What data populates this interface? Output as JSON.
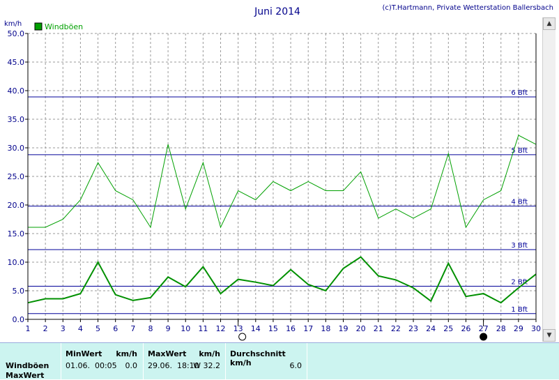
{
  "header": {
    "title": "Juni 2014",
    "copyright": "(c)T.Hartmann, Private Wetterstation Ballersbach",
    "unit": "km/h"
  },
  "chart_data": {
    "type": "line",
    "title": "Juni 2014",
    "ylabel": "km/h",
    "xlabel": "",
    "ylim": [
      0,
      50
    ],
    "xlim": [
      1,
      30
    ],
    "y_ticks": [
      "0.0",
      "5.0",
      "10.0",
      "15.0",
      "20.0",
      "25.0",
      "30.0",
      "35.0",
      "40.0",
      "45.0",
      "50.0"
    ],
    "x_ticks": [
      "1",
      "2",
      "3",
      "4",
      "5",
      "6",
      "7",
      "8",
      "9",
      "10",
      "11",
      "12",
      "13",
      "14",
      "15",
      "16",
      "17",
      "18",
      "19",
      "20",
      "21",
      "22",
      "23",
      "24",
      "25",
      "26",
      "27",
      "28",
      "29",
      "30"
    ],
    "grid": true,
    "legend": {
      "position": "top-left",
      "entries": [
        "Windböen"
      ]
    },
    "x": [
      1,
      2,
      3,
      4,
      5,
      6,
      7,
      8,
      9,
      10,
      11,
      12,
      13,
      14,
      15,
      16,
      17,
      18,
      19,
      20,
      21,
      22,
      23,
      24,
      25,
      26,
      27,
      28,
      29,
      30
    ],
    "series": [
      {
        "name": "Windböen",
        "color": "#00a000",
        "width": 1,
        "values": [
          16.1,
          16.1,
          17.5,
          20.9,
          27.4,
          22.5,
          20.9,
          16.1,
          30.6,
          19.3,
          27.4,
          16.1,
          22.5,
          20.9,
          24.1,
          22.5,
          24.1,
          22.5,
          22.5,
          25.8,
          17.7,
          19.3,
          17.7,
          19.3,
          29.0,
          16.1,
          20.9,
          22.5,
          32.2,
          30.6
        ]
      },
      {
        "values": [
          2.9,
          3.6,
          3.6,
          4.5,
          10.0,
          4.3,
          3.3,
          3.8,
          7.4,
          5.7,
          9.2,
          4.5,
          7.0,
          6.5,
          5.9,
          8.7,
          6.1,
          5.0,
          8.9,
          10.9,
          7.6,
          6.9,
          5.5,
          3.2,
          9.8,
          4.0,
          4.5,
          2.9,
          5.5,
          7.9
        ],
        "color": "#009000",
        "width": 2
      }
    ],
    "beaufort_lines": [
      {
        "label": "1 Bft",
        "value": 1.0
      },
      {
        "label": "2 Bft",
        "value": 5.8
      },
      {
        "label": "3 Bft",
        "value": 12.2
      },
      {
        "label": "4 Bft",
        "value": 19.8
      },
      {
        "label": "5 Bft",
        "value": 28.8
      },
      {
        "label": "6 Bft",
        "value": 38.9
      }
    ],
    "moon_markers": [
      {
        "day": 13,
        "phase": "full-moon"
      },
      {
        "day": 27,
        "phase": "new-moon"
      }
    ],
    "colors": {
      "axis": "#000000",
      "grid": "#999999",
      "beaufort": "#000099",
      "text": "#00008b"
    }
  },
  "footer": {
    "row_labels": [
      "Windböen",
      "MaxWert"
    ],
    "minwert": {
      "header": "MinWert",
      "unit": "km/h",
      "datetime": "01.06.  00:05",
      "value": "0.0"
    },
    "maxwert": {
      "header": "MaxWert",
      "unit": "km/h",
      "datetime": "29.06.  18:10",
      "value": "W 32.2"
    },
    "durchschnitt": {
      "header": "Durchschnitt km/h",
      "value": "6.0"
    }
  }
}
